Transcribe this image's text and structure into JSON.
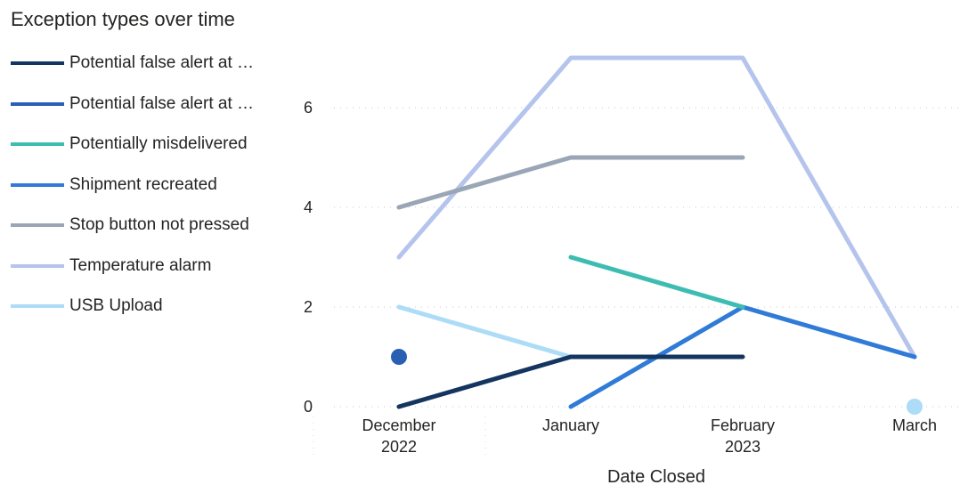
{
  "chart_data": {
    "type": "line",
    "title": "Exception types over time",
    "xlabel": "Date Closed",
    "ylabel": "",
    "ylim": [
      0,
      7
    ],
    "yticks": [
      0,
      2,
      4,
      6
    ],
    "categories": [
      {
        "label": "December",
        "sublabel": "2022"
      },
      {
        "label": "January",
        "sublabel": ""
      },
      {
        "label": "February",
        "sublabel": "2023"
      },
      {
        "label": "March",
        "sublabel": ""
      }
    ],
    "grid": "horizontal dotted",
    "legend_position": "left",
    "series": [
      {
        "name": "Potential false alert at …",
        "color": "#13355f",
        "values": [
          0,
          1,
          1,
          null
        ]
      },
      {
        "name": "Potential false alert at …",
        "color": "#2b5fb4",
        "values": [
          1,
          null,
          null,
          null
        ]
      },
      {
        "name": "Potentially misdelivered",
        "color": "#3dbdb1",
        "values": [
          null,
          3,
          2,
          null
        ]
      },
      {
        "name": "Shipment recreated",
        "color": "#2f7bd7",
        "values": [
          null,
          0,
          2,
          1
        ]
      },
      {
        "name": "Stop button not pressed",
        "color": "#9aa6b5",
        "values": [
          4,
          5,
          5,
          null
        ]
      },
      {
        "name": "Temperature alarm",
        "color": "#b5c4ec",
        "values": [
          3,
          7,
          7,
          1
        ]
      },
      {
        "name": "USB Upload",
        "color": "#acdcf6",
        "values": [
          2,
          1,
          null,
          0
        ]
      }
    ]
  }
}
